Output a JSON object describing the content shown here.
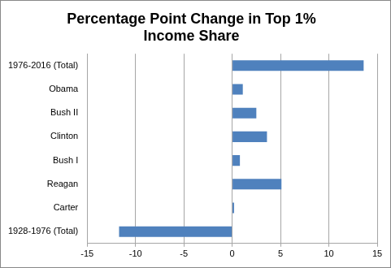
{
  "chart_data": {
    "type": "bar",
    "orientation": "horizontal",
    "title": [
      "Percentage Point Change in Top 1%",
      "Income Share"
    ],
    "categories": [
      "1976-2016 (Total)",
      "Obama",
      "Bush II",
      "Clinton",
      "Bush I",
      "Reagan",
      "Carter",
      "1928-1976 (Total)"
    ],
    "values": [
      13.6,
      1.1,
      2.5,
      3.6,
      0.8,
      5.1,
      0.2,
      -11.7
    ],
    "color": "#4f81bd",
    "xlim": [
      -15,
      15
    ],
    "xticks": [
      -15,
      -10,
      -5,
      0,
      5,
      10,
      15
    ],
    "grid": true
  }
}
